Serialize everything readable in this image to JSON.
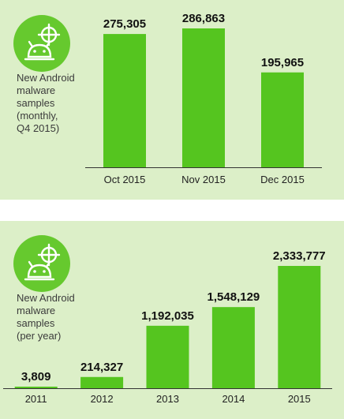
{
  "colors": {
    "panel_bg": "#dcefc8",
    "bar": "#55c51f",
    "badge": "#66c92e",
    "axis": "#333333"
  },
  "panels": [
    {
      "icon": "android-bug-target-icon",
      "label_lines": [
        "New Android",
        "malware",
        "samples",
        "(monthly,",
        "Q4 2015)"
      ]
    },
    {
      "icon": "android-bug-target-icon",
      "label_lines": [
        "New Android",
        "malware",
        "samples",
        "(per year)"
      ]
    }
  ],
  "chart_data": [
    {
      "type": "bar",
      "categories": [
        "Oct 2015",
        "Nov 2015",
        "Dec 2015"
      ],
      "values": [
        275305,
        286863,
        195965
      ],
      "value_labels": [
        "275,305",
        "286,863",
        "195,965"
      ],
      "ylim": [
        0,
        286863
      ],
      "grid": false,
      "title": "",
      "xlabel": "",
      "ylabel": ""
    },
    {
      "type": "bar",
      "categories": [
        "2011",
        "2012",
        "2013",
        "2014",
        "2015"
      ],
      "values": [
        3809,
        214327,
        1192035,
        1548129,
        2333777
      ],
      "value_labels": [
        "3,809",
        "214,327",
        "1,192,035",
        "1,548,129",
        "2,333,777"
      ],
      "ylim": [
        0,
        2333777
      ],
      "grid": false,
      "title": "",
      "xlabel": "",
      "ylabel": ""
    }
  ]
}
